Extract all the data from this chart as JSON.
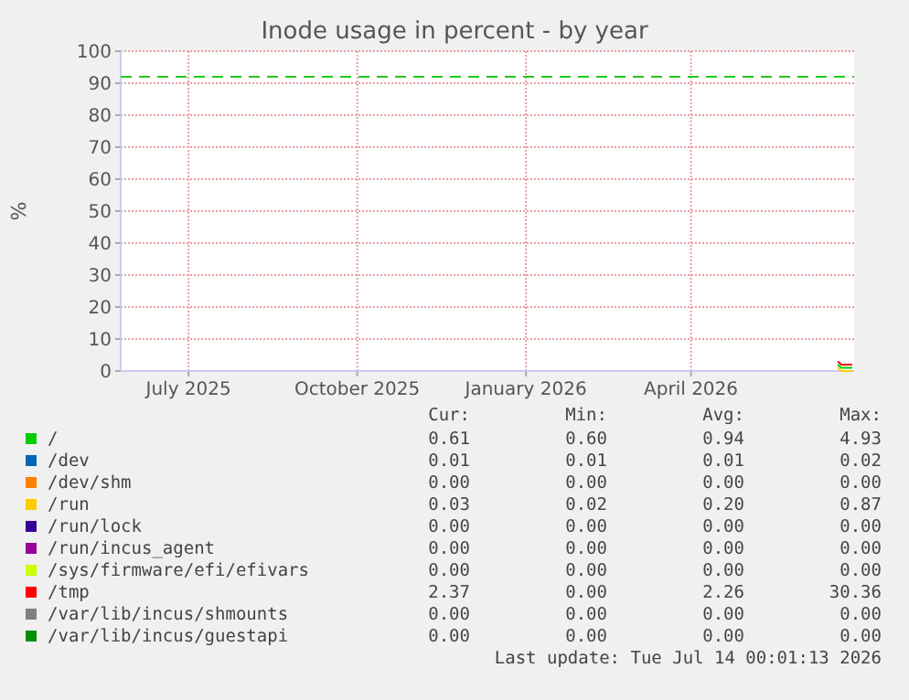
{
  "chart_data": {
    "type": "line",
    "title": "Inode usage in percent - by year",
    "ylabel": "%",
    "x": [
      "2026-07-05",
      "2026-07-07",
      "2026-07-09",
      "2026-07-11",
      "2026-07-13"
    ],
    "xlim": [
      "2025-06-09",
      "2026-07-14"
    ],
    "xticks": [
      {
        "value": "2025-07-16",
        "label": "July 2025"
      },
      {
        "value": "2025-10-16",
        "label": "October 2025"
      },
      {
        "value": "2026-01-16",
        "label": "January 2026"
      },
      {
        "value": "2026-04-16",
        "label": "April 2026"
      }
    ],
    "ylim": [
      0,
      100
    ],
    "yticks": [
      0,
      10,
      20,
      30,
      40,
      50,
      60,
      70,
      80,
      90,
      100
    ],
    "grid": true,
    "legend": "bottom",
    "line_style": "solid",
    "series": [
      {
        "name": "/",
        "color": "#00cc00",
        "values": [
          2,
          1,
          1,
          1,
          1
        ]
      },
      {
        "name": "/dev",
        "color": "#0066b3",
        "values": [
          null,
          null,
          null,
          null,
          null
        ]
      },
      {
        "name": "/dev/shm",
        "color": "#ff8000",
        "values": [
          null,
          null,
          null,
          null,
          null
        ]
      },
      {
        "name": "/run",
        "color": "#ffcc00",
        "values": [
          1,
          0,
          0,
          0,
          0
        ]
      },
      {
        "name": "/run/lock",
        "color": "#330099",
        "values": [
          null,
          null,
          null,
          null,
          null
        ]
      },
      {
        "name": "/run/incus_agent",
        "color": "#990099",
        "values": [
          null,
          null,
          null,
          null,
          null
        ]
      },
      {
        "name": "/sys/firmware/efi/efivars",
        "color": "#ccff00",
        "values": [
          null,
          null,
          null,
          null,
          null
        ]
      },
      {
        "name": "/tmp",
        "color": "#ff0000",
        "values": [
          3,
          2,
          2,
          2,
          2
        ]
      },
      {
        "name": "/var/lib/incus/shmounts",
        "color": "#808080",
        "values": [
          null,
          null,
          null,
          null,
          null
        ]
      },
      {
        "name": "/var/lib/incus/guestapi",
        "color": "#008f00",
        "values": [
          null,
          null,
          null,
          null,
          null
        ]
      }
    ],
    "ref_lines": [
      {
        "axis": "y",
        "value": 92,
        "color": "#22c822",
        "line_style": "dashed"
      }
    ],
    "annotations": [
      "Cur:",
      "Min:",
      "Avg:",
      "Max:",
      "0.61",
      "0.60",
      "0.94",
      "4.93",
      "0.01",
      "0.01",
      "0.01",
      "0.02",
      "0.00",
      "0.00",
      "0.00",
      "0.00",
      "0.03",
      "0.02",
      "0.20",
      "0.87",
      "0.00",
      "0.00",
      "0.00",
      "0.00",
      "0.00",
      "0.00",
      "0.00",
      "0.00",
      "0.00",
      "0.00",
      "0.00",
      "0.00",
      "2.37",
      "0.00",
      "2.26",
      "30.36",
      "0.00",
      "0.00",
      "0.00",
      "0.00",
      "0.00",
      "0.00",
      "0.00",
      "0.00",
      "Last update: Tue Jul 14 00:01:13 2026"
    ]
  }
}
